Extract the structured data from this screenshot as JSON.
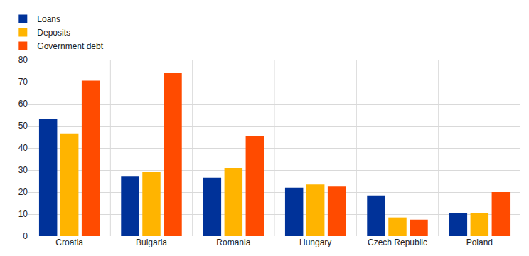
{
  "chart_data": {
    "type": "bar",
    "categories": [
      "Croatia",
      "Bulgaria",
      "Romania",
      "Hungary",
      "Czech Republic",
      "Poland"
    ],
    "series": [
      {
        "name": "Loans",
        "color": "#003299",
        "values": [
          53,
          27,
          26.5,
          22,
          18.5,
          10.5
        ]
      },
      {
        "name": "Deposits",
        "color": "#FFB400",
        "values": [
          46.5,
          29,
          31,
          23.5,
          8.5,
          10.5
        ]
      },
      {
        "name": "Government debt",
        "color": "#FF4B00",
        "values": [
          70.5,
          74,
          45.5,
          22.5,
          7.5,
          20
        ]
      }
    ],
    "ylim": [
      0,
      80
    ],
    "yticks": [
      0,
      10,
      20,
      30,
      40,
      50,
      60,
      70,
      80
    ],
    "grid": true,
    "legend": "top-left"
  }
}
